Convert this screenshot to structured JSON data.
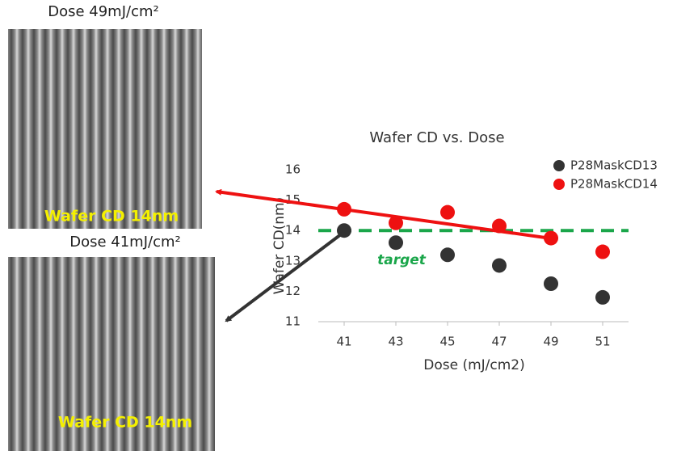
{
  "images": [
    {
      "caption": "Dose 49mJ/cm²",
      "label": "Wafer CD 14nm"
    },
    {
      "caption": "Dose 41mJ/cm²",
      "label": "Wafer CD 14nm"
    }
  ],
  "chart_data": {
    "type": "scatter",
    "title": "Wafer CD vs. Dose",
    "xlabel": "Dose (mJ/cm2)",
    "ylabel": "Wafer CD(nm)",
    "xlim": [
      40,
      52
    ],
    "xticks": [
      41,
      43,
      45,
      47,
      49,
      51
    ],
    "ylim": [
      11,
      16
    ],
    "yticks": [
      11,
      12,
      13,
      14,
      15,
      16
    ],
    "legend": "top-right",
    "target_line": {
      "value": 14,
      "label": "target",
      "color": "#1aa64a"
    },
    "series": [
      {
        "name": "P28MaskCD13",
        "color": "#333333",
        "x": [
          41,
          43,
          45,
          47,
          49,
          51
        ],
        "values": [
          14.0,
          13.6,
          13.2,
          12.85,
          12.25,
          11.8
        ]
      },
      {
        "name": "P28MaskCD14",
        "color": "#ee1111",
        "x": [
          41,
          43,
          45,
          47,
          49,
          51
        ],
        "values": [
          14.7,
          14.25,
          14.6,
          14.15,
          13.75,
          13.3
        ]
      }
    ]
  }
}
